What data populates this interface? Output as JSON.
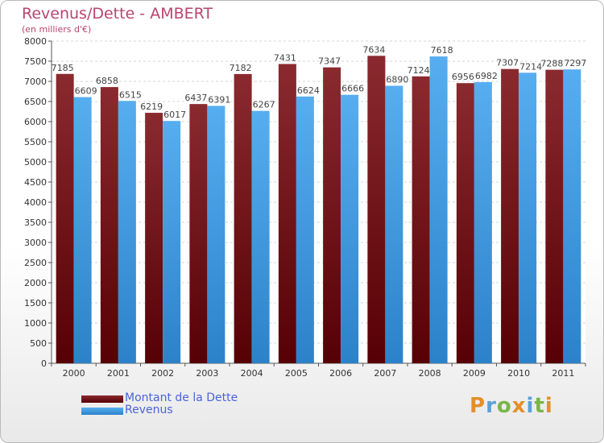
{
  "title": "Revenus/Dette - AMBERT",
  "subtitle": "(en milliers d'€)",
  "logo": "Proxiti",
  "colors": {
    "dette": "#6b0d12",
    "revenus": "#3d97e3",
    "title": "#b8456f",
    "legend_text": "#4a63d8"
  },
  "chart_data": {
    "type": "bar",
    "categories": [
      "2000",
      "2001",
      "2002",
      "2003",
      "2004",
      "2005",
      "2006",
      "2007",
      "2008",
      "2009",
      "2010",
      "2011"
    ],
    "series": [
      {
        "name": "Montant de la Dette",
        "values": [
          7185,
          6858,
          6219,
          6437,
          7182,
          7431,
          7347,
          7634,
          7124,
          6956,
          7307,
          7288
        ]
      },
      {
        "name": "Revenus",
        "values": [
          6609,
          6515,
          6017,
          6391,
          6267,
          6624,
          6666,
          6890,
          7618,
          6982,
          7214,
          7297
        ]
      }
    ],
    "ylim": [
      0,
      8000
    ],
    "yticks": [
      0,
      500,
      1000,
      1500,
      2000,
      2500,
      3000,
      3500,
      4000,
      4500,
      5000,
      5500,
      6000,
      6500,
      7000,
      7500,
      8000
    ],
    "grid": true,
    "legend": "bottom-left"
  }
}
